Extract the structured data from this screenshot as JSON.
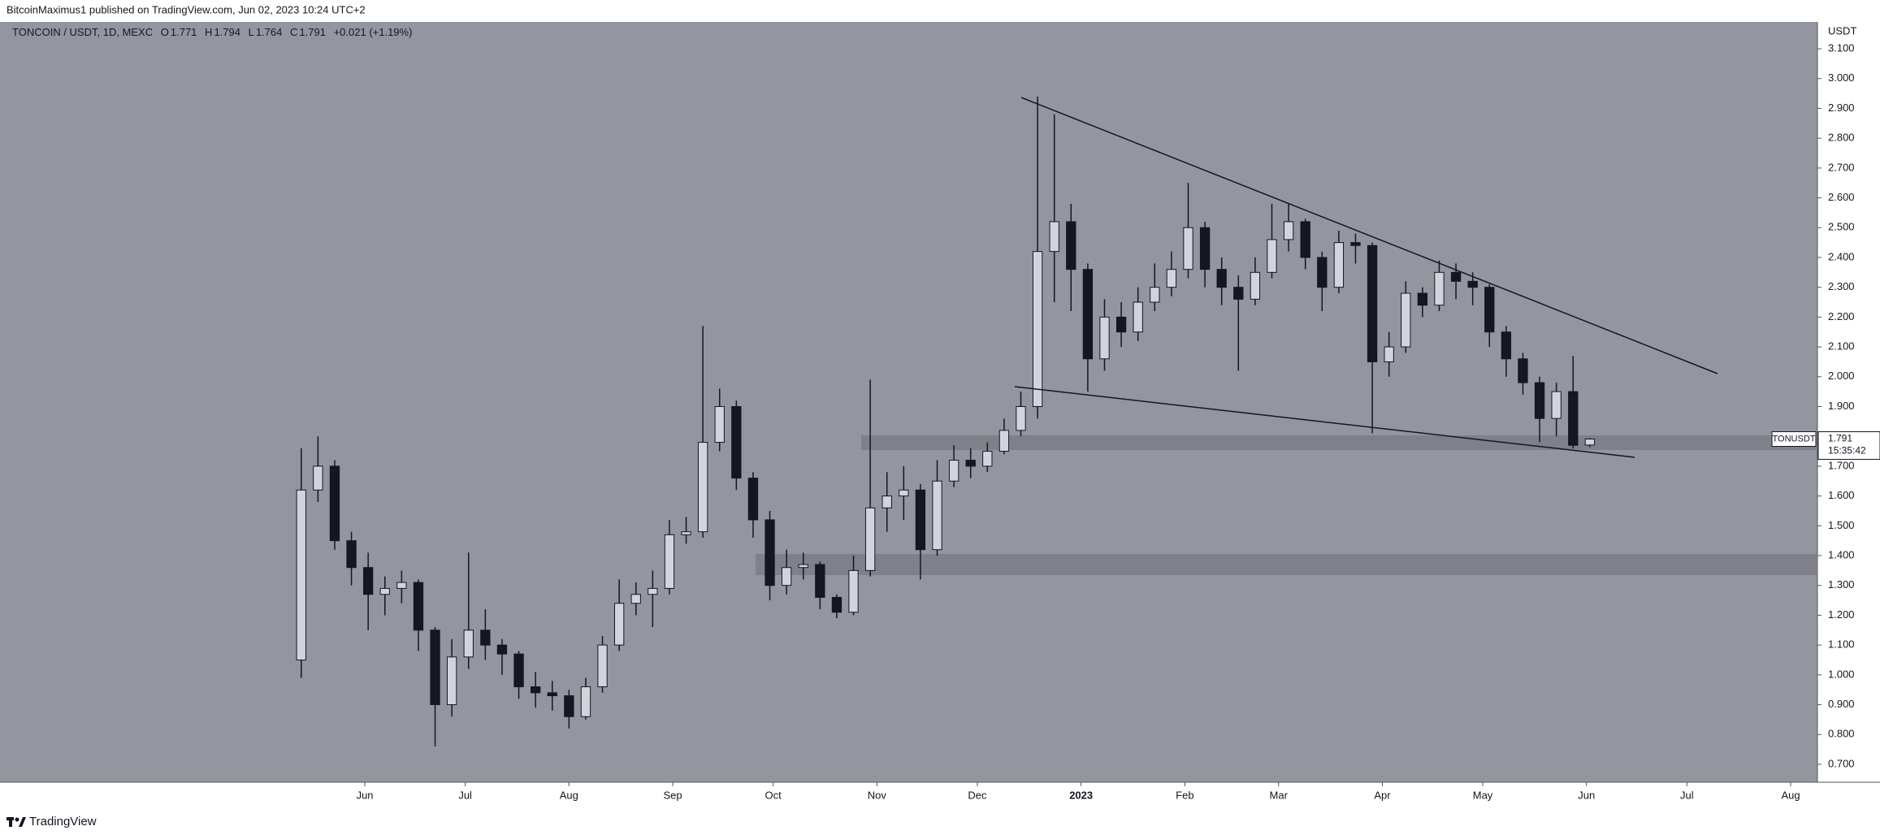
{
  "publisher": "BitcoinMaximus1 published on TradingView.com, Jun 02, 2023 10:24 UTC+2",
  "brand": "TradingView",
  "chart_data": {
    "type": "candlestick",
    "title": "TONCOIN / USDT, 1D, MEXC",
    "legend_keys": [
      "O",
      "H",
      "L",
      "C"
    ],
    "change_label": "+0.021 (+1.19%)",
    "y_label": "USDT",
    "symbol": "TONUSDT",
    "countdown": "15:35:42",
    "background": "#94969f",
    "up_color": "#d1d4dc",
    "down_color": "#131722",
    "x": [
      12,
      17,
      22,
      27,
      32,
      37,
      42,
      47,
      52,
      57,
      62,
      67,
      72,
      77,
      82,
      87,
      92,
      97,
      102,
      107,
      112,
      117,
      122,
      127,
      132,
      137,
      142,
      147,
      152,
      157,
      162,
      167,
      172,
      177,
      182,
      187,
      192,
      197,
      202,
      207,
      212,
      217,
      222,
      227,
      232,
      237,
      242,
      247,
      252,
      257,
      262,
      267,
      272,
      277,
      282,
      287,
      292,
      297,
      302,
      307,
      312,
      317,
      322,
      327,
      332,
      337,
      342,
      347,
      352,
      357,
      362,
      367,
      372,
      377,
      382,
      387,
      392,
      397
    ],
    "open": [
      1.05,
      1.62,
      1.7,
      1.45,
      1.36,
      1.27,
      1.29,
      1.31,
      1.15,
      0.9,
      1.06,
      1.15,
      1.1,
      1.07,
      0.96,
      0.94,
      0.93,
      0.86,
      0.96,
      1.1,
      1.24,
      1.27,
      1.29,
      1.47,
      1.48,
      1.78,
      1.9,
      1.66,
      1.52,
      1.3,
      1.36,
      1.37,
      1.26,
      1.21,
      1.35,
      1.56,
      1.6,
      1.62,
      1.42,
      1.65,
      1.72,
      1.7,
      1.75,
      1.82,
      1.9,
      2.42,
      2.52,
      2.36,
      2.06,
      2.2,
      2.15,
      2.25,
      2.3,
      2.36,
      2.5,
      2.36,
      2.3,
      2.26,
      2.35,
      2.46,
      2.52,
      2.4,
      2.3,
      2.45,
      2.44,
      2.05,
      2.1,
      2.28,
      2.24,
      2.35,
      2.32,
      2.3,
      2.15,
      2.06,
      1.98,
      1.86,
      1.95,
      1.771
    ],
    "high": [
      1.76,
      1.8,
      1.72,
      1.48,
      1.41,
      1.33,
      1.35,
      1.32,
      1.16,
      1.12,
      1.41,
      1.22,
      1.12,
      1.08,
      1.01,
      0.98,
      0.95,
      0.99,
      1.13,
      1.32,
      1.31,
      1.35,
      1.52,
      1.53,
      2.17,
      1.96,
      1.92,
      1.68,
      1.55,
      1.42,
      1.41,
      1.38,
      1.27,
      1.4,
      1.99,
      1.68,
      1.7,
      1.64,
      1.72,
      1.77,
      1.76,
      1.78,
      1.86,
      1.95,
      2.94,
      2.88,
      2.58,
      2.38,
      2.26,
      2.25,
      2.3,
      2.38,
      2.42,
      2.65,
      2.52,
      2.4,
      2.34,
      2.4,
      2.58,
      2.58,
      2.53,
      2.42,
      2.49,
      2.48,
      2.45,
      2.15,
      2.32,
      2.3,
      2.39,
      2.38,
      2.35,
      2.31,
      2.17,
      2.08,
      2.0,
      1.98,
      2.07,
      1.794
    ],
    "low": [
      0.99,
      1.58,
      1.42,
      1.3,
      1.15,
      1.2,
      1.24,
      1.08,
      0.76,
      0.86,
      1.02,
      1.05,
      1.0,
      0.92,
      0.89,
      0.88,
      0.82,
      0.85,
      0.94,
      1.08,
      1.2,
      1.16,
      1.27,
      1.44,
      1.46,
      1.75,
      1.62,
      1.46,
      1.25,
      1.27,
      1.32,
      1.22,
      1.19,
      1.2,
      1.33,
      1.48,
      1.52,
      1.32,
      1.4,
      1.63,
      1.66,
      1.68,
      1.74,
      1.8,
      1.86,
      2.25,
      2.22,
      1.95,
      2.02,
      2.1,
      2.12,
      2.22,
      2.27,
      2.33,
      2.3,
      2.24,
      2.02,
      2.24,
      2.33,
      2.42,
      2.36,
      2.22,
      2.28,
      2.38,
      1.81,
      2.0,
      2.08,
      2.2,
      2.22,
      2.26,
      2.24,
      2.1,
      2.0,
      1.94,
      1.78,
      1.8,
      1.76,
      1.764
    ],
    "close": [
      1.62,
      1.7,
      1.45,
      1.36,
      1.27,
      1.29,
      1.31,
      1.15,
      0.9,
      1.06,
      1.15,
      1.1,
      1.07,
      0.96,
      0.94,
      0.93,
      0.86,
      0.96,
      1.1,
      1.24,
      1.27,
      1.29,
      1.47,
      1.48,
      1.78,
      1.9,
      1.66,
      1.52,
      1.3,
      1.36,
      1.37,
      1.26,
      1.21,
      1.35,
      1.56,
      1.6,
      1.62,
      1.42,
      1.65,
      1.72,
      1.7,
      1.75,
      1.82,
      1.9,
      2.42,
      2.52,
      2.36,
      2.06,
      2.2,
      2.15,
      2.25,
      2.3,
      2.36,
      2.5,
      2.36,
      2.3,
      2.26,
      2.35,
      2.46,
      2.52,
      2.4,
      2.3,
      2.45,
      2.44,
      2.05,
      2.1,
      2.28,
      2.24,
      2.35,
      2.32,
      2.3,
      2.15,
      2.06,
      1.98,
      1.86,
      1.95,
      1.77,
      1.791
    ],
    "xlim": [
      -78,
      465
    ],
    "xticks": [
      {
        "value": 31,
        "label": "Jun"
      },
      {
        "value": 61,
        "label": "Jul"
      },
      {
        "value": 92,
        "label": "Aug"
      },
      {
        "value": 123,
        "label": "Sep"
      },
      {
        "value": 153,
        "label": "Oct"
      },
      {
        "value": 184,
        "label": "Nov"
      },
      {
        "value": 214,
        "label": "Dec"
      },
      {
        "value": 245,
        "label": "2023"
      },
      {
        "value": 276,
        "label": "Feb"
      },
      {
        "value": 304,
        "label": "Mar"
      },
      {
        "value": 335,
        "label": "Apr"
      },
      {
        "value": 365,
        "label": "May"
      },
      {
        "value": 396,
        "label": "Jun"
      },
      {
        "value": 426,
        "label": "Jul"
      },
      {
        "value": 457,
        "label": "Aug"
      }
    ],
    "ylim": [
      0.64,
      3.19
    ],
    "yticks": [
      {
        "value": 0.7,
        "label": "0.700"
      },
      {
        "value": 0.8,
        "label": "0.800"
      },
      {
        "value": 0.9,
        "label": "0.900"
      },
      {
        "value": 1.0,
        "label": "1.000"
      },
      {
        "value": 1.1,
        "label": "1.100"
      },
      {
        "value": 1.2,
        "label": "1.200"
      },
      {
        "value": 1.3,
        "label": "1.300"
      },
      {
        "value": 1.4,
        "label": "1.400"
      },
      {
        "value": 1.5,
        "label": "1.500"
      },
      {
        "value": 1.6,
        "label": "1.600"
      },
      {
        "value": 1.7,
        "label": "1.700"
      },
      {
        "value": 1.8,
        "label": "1.800"
      },
      {
        "value": 1.9,
        "label": "1.900"
      },
      {
        "value": 2.0,
        "label": "2.000"
      },
      {
        "value": 2.1,
        "label": "2.100"
      },
      {
        "value": 2.2,
        "label": "2.200"
      },
      {
        "value": 2.3,
        "label": "2.300"
      },
      {
        "value": 2.4,
        "label": "2.400"
      },
      {
        "value": 2.5,
        "label": "2.500"
      },
      {
        "value": 2.6,
        "label": "2.600"
      },
      {
        "value": 2.7,
        "label": "2.700"
      },
      {
        "value": 2.8,
        "label": "2.800"
      },
      {
        "value": 2.9,
        "label": "2.900"
      },
      {
        "value": 3.0,
        "label": "3.000"
      },
      {
        "value": 3.1,
        "label": "3.100"
      }
    ]
  }
}
